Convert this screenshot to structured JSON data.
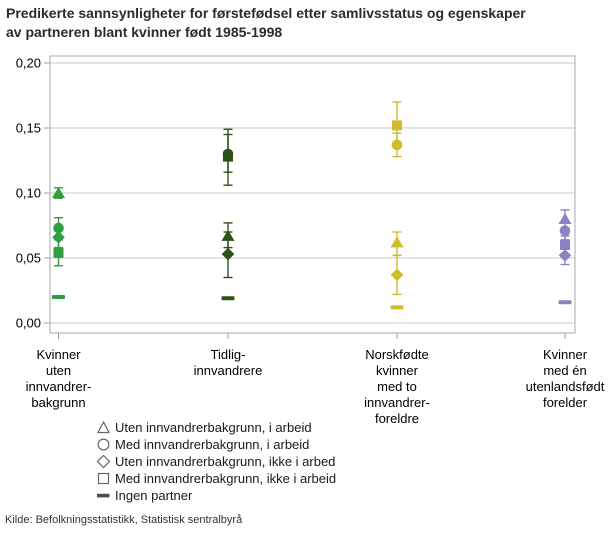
{
  "title_lines": [
    "Predikerte sannsynligheter for førstefødsel etter samlivsstatus og egenskaper",
    "av partneren blant kvinner født 1985-1998"
  ],
  "source": "Kilde: Befolkningsstatistikk, Statistisk sentralbyrå",
  "colors": {
    "background": "#ffffff",
    "title_text": "#2b2b2b",
    "grid": "#c9c9c9",
    "plot_border": "#a8a8a8",
    "tick": "#9c9c9c",
    "axis_text": "#000000",
    "legend_symbol": "#666666",
    "legend_dash": "#4d4d4d",
    "group_colors": [
      "#2f9e41",
      "#2d5219",
      "#d1bb2c",
      "#8e80c3"
    ]
  },
  "chart_data": {
    "type": "scatter",
    "title": "Predikerte sannsynligheter for førstefødsel etter samlivsstatus og egenskaper av partneren blant kvinner født 1985-1998",
    "xlabel": "",
    "ylabel": "",
    "ylim": [
      0,
      0.2
    ],
    "grid": true,
    "legend_position": "bottom-left",
    "yticks": [
      {
        "v": 0.0,
        "label": "0,00"
      },
      {
        "v": 0.05,
        "label": "0,05"
      },
      {
        "v": 0.1,
        "label": "0,10"
      },
      {
        "v": 0.15,
        "label": "0,15"
      },
      {
        "v": 0.2,
        "label": "0,20"
      }
    ],
    "categories": [
      {
        "label_lines": [
          "Kvinner",
          "uten",
          "innvandrer-",
          "bakgrunn"
        ],
        "color": "#2f9e41"
      },
      {
        "label_lines": [
          "Tidlig-",
          "innvandrere"
        ],
        "color": "#2d5219"
      },
      {
        "label_lines": [
          "Norskfødte",
          "kvinner",
          "med to",
          "innvandrer-",
          "foreldre"
        ],
        "color": "#d1bb2c"
      },
      {
        "label_lines": [
          "Kvinner",
          "med én",
          "utenlandsfødt",
          "forelder"
        ],
        "color": "#8e80c3"
      }
    ],
    "series": [
      {
        "name": "Uten innvandrerbakgrunn, i arbeid",
        "marker": "triangle",
        "values": [
          0.1,
          0.067,
          0.062,
          0.08
        ],
        "ci": [
          [
            0.096,
            0.104
          ],
          [
            0.058,
            0.077
          ],
          [
            0.052,
            0.07
          ],
          [
            0.073,
            0.087
          ]
        ]
      },
      {
        "name": "Med innvandrerbakgrunn, i arbeid",
        "marker": "circle",
        "values": [
          0.073,
          0.13,
          0.137,
          0.071
        ],
        "ci": [
          [
            0.065,
            0.081
          ],
          [
            0.116,
            0.145
          ],
          [
            0.128,
            0.146
          ],
          [
            0.064,
            0.078
          ]
        ]
      },
      {
        "name": "Uten innvandrerbakgrunn, ikke i arbed",
        "marker": "diamond",
        "values": [
          0.066,
          0.053,
          0.037,
          0.052
        ],
        "ci": [
          [
            0.058,
            0.074
          ],
          [
            0.035,
            0.07
          ],
          [
            0.022,
            0.052
          ],
          [
            0.045,
            0.059
          ]
        ]
      },
      {
        "name": "Med innvandrerbakgrunn, ikke i arbeid",
        "marker": "square",
        "values": [
          0.054,
          0.128,
          0.152,
          0.06
        ],
        "ci": [
          [
            0.044,
            0.064
          ],
          [
            0.106,
            0.149
          ],
          [
            0.135,
            0.17
          ],
          [
            0.053,
            0.067
          ]
        ]
      },
      {
        "name": "Ingen partner",
        "marker": "dash",
        "values": [
          0.02,
          0.019,
          0.012,
          0.016
        ],
        "ci": null
      }
    ]
  }
}
